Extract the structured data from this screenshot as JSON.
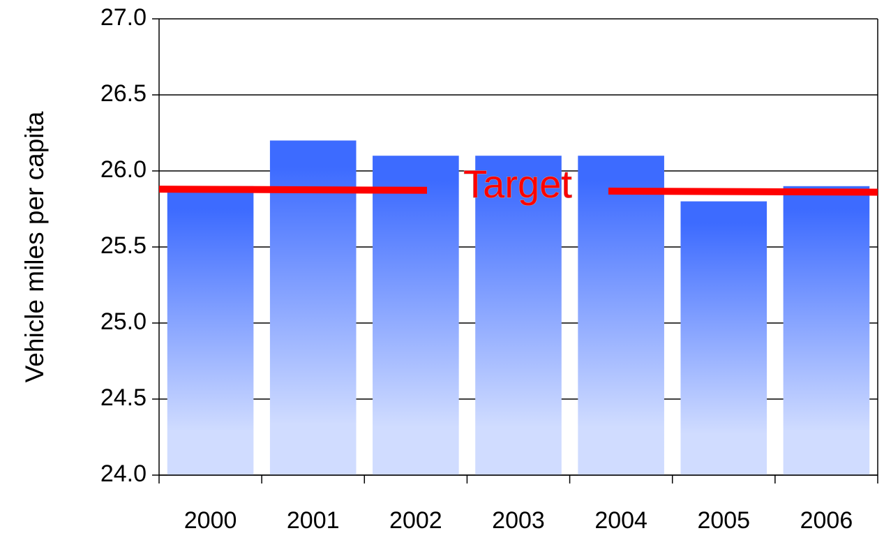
{
  "chart_data": {
    "type": "bar",
    "y_label": "Vehicle miles per capita",
    "categories": [
      "2000",
      "2001",
      "2002",
      "2003",
      "2004",
      "2005",
      "2006"
    ],
    "values": [
      25.9,
      26.2,
      26.1,
      26.1,
      26.1,
      25.8,
      25.9
    ],
    "color": "#3d6bff",
    "ylim": [
      24,
      27
    ],
    "yticks": [
      {
        "value": 24,
        "label": "24.0"
      },
      24.5,
      {
        "value": 25,
        "label": "25.0"
      },
      25.5,
      {
        "value": 26,
        "label": "26.0"
      },
      26.5,
      {
        "value": 27,
        "label": "27.0"
      }
    ],
    "grid": true,
    "target_line": {
      "label": "Target",
      "color": "#ff0000",
      "start": 25.88,
      "end": 25.86
    }
  }
}
